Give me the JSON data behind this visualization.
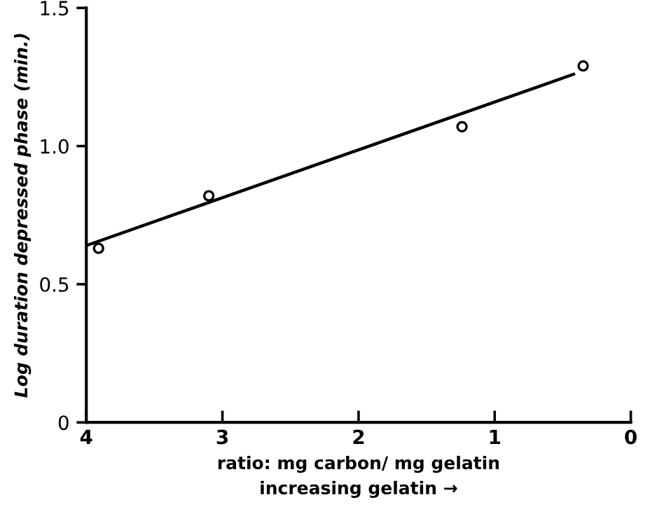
{
  "chart_data": {
    "type": "scatter",
    "xlabel": "ratio: mg carbon/ mg gelatin\nincreasing gelatin →",
    "ylabel": "Log duration depressed phase (min.)",
    "x": [
      3.91,
      3.1,
      1.24,
      0.35
    ],
    "series": [
      {
        "color": "#000000",
        "marker": "circle",
        "values": [
          0.63,
          0.82,
          1.07,
          1.29
        ]
      },
      {
        "type": "line",
        "color": "#000000",
        "marker": "none",
        "line_style": "solid",
        "x": [
          4,
          0.42
        ],
        "values": [
          0.64,
          1.26
        ]
      }
    ],
    "xlim": [
      4,
      0
    ],
    "ylim": [
      0,
      1.5
    ],
    "xticks": [
      4,
      3,
      2,
      1,
      0
    ],
    "yticks": [
      0,
      0.5,
      {
        "value": 1.0,
        "label": "1.0"
      },
      1.5
    ],
    "grid": false,
    "legend": false
  }
}
